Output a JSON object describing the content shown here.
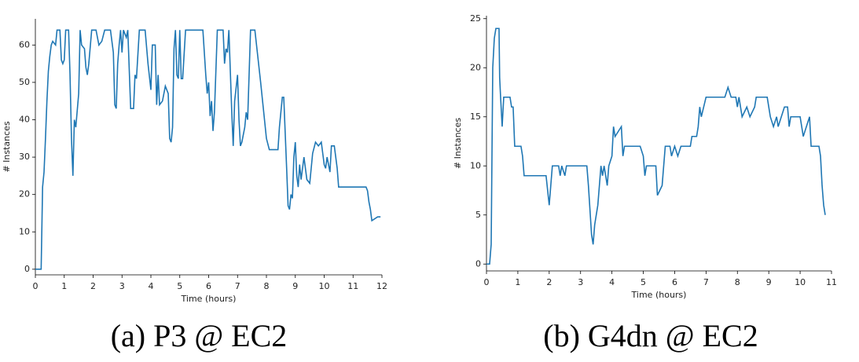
{
  "chart_data": [
    {
      "type": "line",
      "caption": "(a) P3 @ EC2",
      "xlabel": "Time (hours)",
      "ylabel": "# Instances",
      "color": "#1f77b4",
      "xlim": [
        0,
        12
      ],
      "ylim": [
        -1.5,
        67
      ],
      "xticks": [
        0,
        1,
        2,
        3,
        4,
        5,
        6,
        7,
        8,
        9,
        10,
        11,
        12
      ],
      "yticks": [
        0,
        10,
        20,
        30,
        40,
        50,
        60
      ],
      "x": [
        0,
        0.2,
        0.25,
        0.3,
        0.35,
        0.4,
        0.45,
        0.5,
        0.55,
        0.6,
        0.7,
        0.75,
        0.85,
        0.9,
        0.95,
        1.0,
        1.05,
        1.15,
        1.2,
        1.25,
        1.3,
        1.35,
        1.4,
        1.5,
        1.55,
        1.6,
        1.7,
        1.75,
        1.8,
        1.85,
        1.95,
        2.1,
        2.2,
        2.3,
        2.4,
        2.6,
        2.7,
        2.75,
        2.8,
        2.85,
        2.9,
        2.95,
        3.0,
        3.05,
        3.15,
        3.2,
        3.3,
        3.4,
        3.45,
        3.5,
        3.6,
        3.8,
        3.9,
        4.0,
        4.05,
        4.15,
        4.2,
        4.25,
        4.3,
        4.4,
        4.5,
        4.6,
        4.65,
        4.7,
        4.75,
        4.8,
        4.85,
        4.9,
        4.95,
        5.0,
        5.05,
        5.1,
        5.2,
        5.8,
        5.9,
        5.95,
        6.0,
        6.05,
        6.1,
        6.15,
        6.2,
        6.3,
        6.5,
        6.55,
        6.6,
        6.65,
        6.7,
        6.8,
        6.85,
        6.9,
        7.0,
        7.05,
        7.1,
        7.15,
        7.25,
        7.3,
        7.35,
        7.45,
        7.6,
        7.7,
        7.8,
        8.0,
        8.1,
        8.4,
        8.45,
        8.55,
        8.6,
        8.7,
        8.75,
        8.8,
        8.85,
        8.9,
        8.95,
        9.0,
        9.05,
        9.1,
        9.15,
        9.2,
        9.3,
        9.4,
        9.5,
        9.6,
        9.7,
        9.8,
        9.9,
        10.0,
        10.05,
        10.1,
        10.2,
        10.25,
        10.35,
        10.45,
        10.5,
        11.0,
        11.45,
        11.5,
        11.55,
        11.6,
        11.65,
        11.85,
        11.95
      ],
      "values": [
        0,
        0,
        22,
        26,
        35,
        45,
        53,
        57,
        60,
        61,
        60,
        64,
        64,
        56,
        55,
        56,
        64,
        64,
        52,
        35,
        25,
        40,
        38,
        47,
        64,
        60,
        59,
        54,
        52,
        55,
        64,
        64,
        60,
        61,
        64,
        64,
        58,
        44,
        43,
        55,
        60,
        64,
        58,
        64,
        62,
        64,
        43,
        43,
        52,
        51,
        64,
        64,
        55,
        48,
        60,
        60,
        44,
        52,
        44,
        45,
        49,
        47,
        35,
        34,
        38,
        59,
        64,
        52,
        51,
        64,
        51,
        51,
        64,
        64,
        52,
        47,
        50,
        41,
        45,
        37,
        42,
        64,
        64,
        55,
        59,
        58,
        64,
        42,
        33,
        45,
        52,
        40,
        33,
        34,
        38,
        42,
        40,
        64,
        64,
        57,
        50,
        35,
        32,
        32,
        38,
        46,
        46,
        27,
        17,
        16,
        20,
        19,
        30,
        34,
        25,
        22,
        28,
        24,
        30,
        24,
        23,
        31,
        34,
        33,
        34,
        28,
        27,
        30,
        26,
        33,
        33,
        27,
        22,
        22,
        22,
        21,
        18,
        16,
        13,
        14,
        14
      ]
    },
    {
      "type": "line",
      "caption": "(b) G4dn @ EC2",
      "xlabel": "Time (hours)",
      "ylabel": "# Instances",
      "color": "#1f77b4",
      "xlim": [
        0,
        11
      ],
      "ylim": [
        -0.7,
        25.3
      ],
      "xticks": [
        0,
        1,
        2,
        3,
        4,
        5,
        6,
        7,
        8,
        9,
        10,
        11
      ],
      "yticks": [
        0,
        5,
        10,
        15,
        20,
        25
      ],
      "x": [
        0,
        0.1,
        0.15,
        0.2,
        0.25,
        0.3,
        0.4,
        0.42,
        0.45,
        0.5,
        0.55,
        0.75,
        0.8,
        0.85,
        0.9,
        1.1,
        1.15,
        1.2,
        1.9,
        2.0,
        2.05,
        2.1,
        2.3,
        2.35,
        2.4,
        2.5,
        2.55,
        3.2,
        3.25,
        3.35,
        3.4,
        3.45,
        3.55,
        3.65,
        3.7,
        3.75,
        3.85,
        3.9,
        4.0,
        4.05,
        4.1,
        4.3,
        4.35,
        4.4,
        4.9,
        5.0,
        5.05,
        5.1,
        5.4,
        5.45,
        5.6,
        5.7,
        5.85,
        5.9,
        6.0,
        6.1,
        6.2,
        6.5,
        6.55,
        6.7,
        6.75,
        6.8,
        6.85,
        7.0,
        7.6,
        7.7,
        7.8,
        7.95,
        8.0,
        8.05,
        8.15,
        8.3,
        8.4,
        8.55,
        8.6,
        8.7,
        8.8,
        8.95,
        9.05,
        9.15,
        9.25,
        9.3,
        9.5,
        9.6,
        9.65,
        9.7,
        10.0,
        10.05,
        10.1,
        10.3,
        10.35,
        10.6,
        10.65,
        10.7,
        10.75,
        10.8
      ],
      "values": [
        0,
        0,
        2,
        20,
        23,
        24,
        24,
        19,
        17,
        14,
        17,
        17,
        16,
        16,
        12,
        12,
        11,
        9,
        9,
        6,
        8,
        10,
        10,
        9,
        10,
        9,
        10,
        10,
        8,
        3,
        2,
        4,
        6,
        10,
        9,
        10,
        8,
        10,
        11,
        14,
        13,
        14,
        11,
        12,
        12,
        11,
        9,
        10,
        10,
        7,
        8,
        12,
        12,
        11,
        12,
        11,
        12,
        12,
        13,
        13,
        14,
        16,
        15,
        17,
        17,
        18,
        17,
        17,
        16,
        17,
        15,
        16,
        15,
        16,
        17,
        17,
        17,
        17,
        15,
        14,
        15,
        14,
        16,
        16,
        14,
        15,
        15,
        14,
        13,
        15,
        12,
        12,
        11,
        8,
        6,
        5
      ]
    }
  ]
}
